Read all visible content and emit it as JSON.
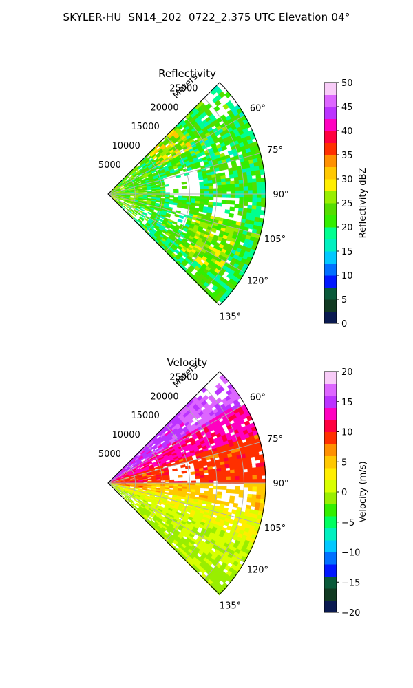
{
  "figure": {
    "suptitle": "SKYLER-HU  SN14_202  0722_2.375 UTC Elevation 04°"
  },
  "chart_data": [
    {
      "type": "heatmap",
      "subtype": "polar-sector-radar-ppi",
      "title": "Reflectivity",
      "radial_axis_label": "Meters",
      "radial_ticks": [
        5000,
        10000,
        15000,
        20000,
        25000
      ],
      "radial_tick_labels": [
        "5000",
        "10000",
        "15000",
        "20000",
        "25000"
      ],
      "azimuth_ticks": [
        60,
        75,
        90,
        105,
        120,
        135
      ],
      "azimuth_tick_labels": [
        "60°",
        "75°",
        "90°",
        "105°",
        "120°",
        "135°"
      ],
      "azimuth_range": [
        45,
        135
      ],
      "range_max": 29000,
      "grid": true,
      "colorbar": {
        "label": "Reflectivity dBZ",
        "range": [
          0,
          50
        ],
        "ticks": [
          0,
          5,
          10,
          15,
          20,
          25,
          30,
          35,
          40,
          45,
          50
        ],
        "tick_labels": [
          "0",
          "5",
          "10",
          "15",
          "20",
          "25",
          "30",
          "35",
          "40",
          "45",
          "50"
        ]
      },
      "palette": [
        "#0a1a50",
        "#123a22",
        "#0a5a3a",
        "#0018ff",
        "#0070ff",
        "#00c8ff",
        "#00f0c0",
        "#00ff90",
        "#33ee00",
        "#55dd00",
        "#99ee00",
        "#ffee00",
        "#ffc800",
        "#ff9000",
        "#ff3000",
        "#ff0040",
        "#ff00c0",
        "#bb33ff",
        "#dd66ff",
        "#f8ccf8"
      ]
    },
    {
      "type": "heatmap",
      "subtype": "polar-sector-radar-ppi",
      "title": "Velocity",
      "radial_axis_label": "Meters",
      "radial_ticks": [
        5000,
        10000,
        15000,
        20000,
        25000
      ],
      "radial_tick_labels": [
        "5000",
        "10000",
        "15000",
        "20000",
        "25000"
      ],
      "azimuth_ticks": [
        60,
        75,
        90,
        105,
        120,
        135
      ],
      "azimuth_tick_labels": [
        "60°",
        "75°",
        "90°",
        "105°",
        "120°",
        "135°"
      ],
      "azimuth_range": [
        45,
        135
      ],
      "range_max": 29000,
      "grid": true,
      "colorbar": {
        "label": "Velocity (m/s)",
        "range": [
          -20,
          20
        ],
        "ticks": [
          -20,
          -15,
          -10,
          -5,
          0,
          5,
          10,
          15,
          20
        ],
        "tick_labels": [
          "−20",
          "−15",
          "−10",
          "−5",
          "0",
          "5",
          "10",
          "15",
          "20"
        ]
      },
      "palette": [
        "#0a1a50",
        "#123a22",
        "#0a5a3a",
        "#0018ff",
        "#0070ff",
        "#00c8ff",
        "#00f0c0",
        "#00ff60",
        "#33ee00",
        "#99ee00",
        "#d8ff00",
        "#ffee00",
        "#ffc800",
        "#ff9000",
        "#ff3000",
        "#ff0040",
        "#ff00c0",
        "#bb33ff",
        "#dd66ff",
        "#f8ccf8"
      ]
    }
  ]
}
